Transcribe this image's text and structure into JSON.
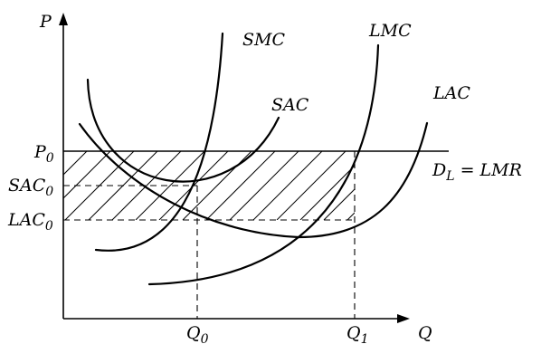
{
  "axes": {
    "y_label": "P",
    "x_label": "Q"
  },
  "y_ticks": [
    {
      "main": "P",
      "sub": "0"
    },
    {
      "main": "SAC",
      "sub": "0"
    },
    {
      "main": "LAC",
      "sub": "0"
    }
  ],
  "x_ticks": [
    {
      "main": "Q",
      "sub": "0"
    },
    {
      "main": "Q",
      "sub": "1"
    }
  ],
  "curves": {
    "smc": "SMC",
    "lmc": "LMC",
    "sac": "SAC",
    "lac": "LAC"
  },
  "demand": {
    "main": "D",
    "sub": "L",
    "rest": " = LMR"
  }
}
